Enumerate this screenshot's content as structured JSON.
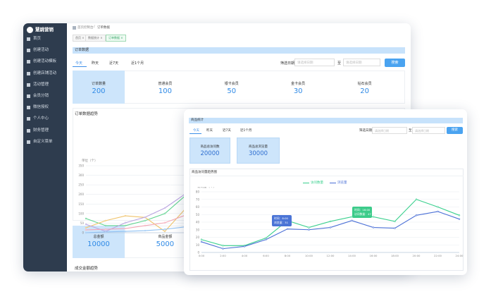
{
  "back": {
    "logo": "慧跳营销",
    "menu": [
      "首页",
      "创建活动",
      "创建活动模板",
      "创建店铺活动",
      "活动管理",
      "会员分销",
      "微信授权",
      "个人中心",
      "财务管理",
      "自定义菜单"
    ],
    "breadcrumb": [
      "首页控制台",
      "订单数据"
    ],
    "tabs": [
      "首页",
      "数据统计",
      "订单数据"
    ],
    "section": "订单数据",
    "periods": [
      "今天",
      "昨天",
      "近7天",
      "近1个月"
    ],
    "filter": {
      "label": "筛选日期",
      "placeholder": "请选择日期",
      "to": "至",
      "button": "搜索"
    },
    "stats": [
      {
        "label": "订单数量",
        "value": 200
      },
      {
        "label": "普通会员",
        "value": 100
      },
      {
        "label": "银卡会员",
        "value": 50
      },
      {
        "label": "金卡会员",
        "value": 30
      },
      {
        "label": "钻石会员",
        "value": 20
      }
    ],
    "chart": {
      "title": "订单数据趋势",
      "y_label": "单位（个）",
      "ylim": [
        0,
        350
      ],
      "yticks": [
        0,
        50,
        100,
        150,
        200,
        250,
        300,
        350
      ],
      "series": [
        {
          "color": "#5fd38f",
          "values": [
            74,
            37,
            37,
            63,
            100,
            190
          ]
        },
        {
          "color": "#f0c36b",
          "values": [
            26,
            63,
            88,
            80,
            7,
            120
          ]
        },
        {
          "color": "#b9a4e0",
          "values": [
            44,
            7,
            52,
            81,
            129,
            200
          ]
        },
        {
          "color": "#f4a6b5",
          "values": [
            15,
            18,
            22,
            37,
            52,
            90
          ]
        },
        {
          "color": "#8fc1f3",
          "values": [
            0,
            4,
            7,
            11,
            18,
            30
          ]
        }
      ]
    },
    "totals": [
      {
        "label": "总金额",
        "value": 10000
      },
      {
        "label": "商品金额",
        "value": 5000
      }
    ],
    "bottom_title": "成交金额趋势"
  },
  "front": {
    "section": "商品统计",
    "periods": [
      "今天",
      "昨天",
      "近7天",
      "近1个月"
    ],
    "filter": {
      "label": "筛选日期",
      "placeholder": "请选择日期",
      "to": "至",
      "button": "搜索"
    },
    "stats": [
      {
        "label": "商品总访问数",
        "value": 20000
      },
      {
        "label": "商品总浏览量",
        "value": 30000
      }
    ],
    "chart": {
      "title": "商品访问量趋势图",
      "y_label": "访问量（个）",
      "categories": [
        "0:00",
        "2:00",
        "4:00",
        "6:00",
        "8:00",
        "10:00",
        "12:00",
        "14:00",
        "16:00",
        "18:00",
        "20:00",
        "22:00",
        "24:00"
      ],
      "ylim": [
        0,
        80
      ],
      "yticks": [
        0,
        10,
        20,
        30,
        40,
        50,
        60,
        70,
        80
      ],
      "series": [
        {
          "name": "访问数量",
          "color": "#3ad08e",
          "values": [
            17,
            9,
            9,
            19,
            42,
            33,
            41,
            47,
            47,
            41,
            70,
            60,
            49
          ]
        },
        {
          "name": "浏览量",
          "color": "#4a6fd6",
          "values": [
            14,
            5,
            8,
            17,
            31,
            30,
            33,
            42,
            33,
            32,
            49,
            54,
            44
          ]
        }
      ],
      "tooltips": [
        [
          "时间：8:00",
          "浏览量：31"
        ],
        [
          "时间：16:00",
          "访问数量：47"
        ]
      ]
    }
  }
}
